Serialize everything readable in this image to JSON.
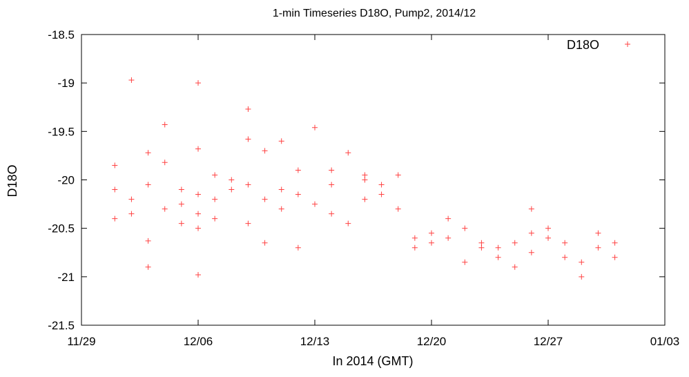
{
  "chart_data": {
    "type": "scatter",
    "title": "1-min Timeseries D18O, Pump2, 2014/12",
    "xlabel": "In 2014 (GMT)",
    "ylabel": "D18O",
    "xlim": [
      "2014-11-29",
      "2015-01-03"
    ],
    "ylim": [
      -21.5,
      -18.5
    ],
    "x_ticks": [
      "11/29",
      "12/06",
      "12/13",
      "12/20",
      "12/27",
      "01/03"
    ],
    "y_ticks": [
      "-18.5",
      "-19",
      "-19.5",
      "-20",
      "-20.5",
      "-21",
      "-21.5"
    ],
    "grid": false,
    "legend": "top-right",
    "series": [
      {
        "name": "D18O",
        "color": "#ff0000",
        "marker": "plus",
        "points": [
          [
            "2014-12-01",
            -20.1
          ],
          [
            "2014-12-01",
            -19.85
          ],
          [
            "2014-12-01",
            -20.4
          ],
          [
            "2014-12-02",
            -18.97
          ],
          [
            "2014-12-02",
            -20.2
          ],
          [
            "2014-12-02",
            -20.35
          ],
          [
            "2014-12-03",
            -19.72
          ],
          [
            "2014-12-03",
            -20.05
          ],
          [
            "2014-12-03",
            -20.9
          ],
          [
            "2014-12-03",
            -20.63
          ],
          [
            "2014-12-04",
            -19.43
          ],
          [
            "2014-12-04",
            -20.3
          ],
          [
            "2014-12-04",
            -19.82
          ],
          [
            "2014-12-05",
            -20.25
          ],
          [
            "2014-12-05",
            -20.45
          ],
          [
            "2014-12-05",
            -20.1
          ],
          [
            "2014-12-06",
            -19.0
          ],
          [
            "2014-12-06",
            -20.35
          ],
          [
            "2014-12-06",
            -20.5
          ],
          [
            "2014-12-06",
            -20.98
          ],
          [
            "2014-12-06",
            -19.68
          ],
          [
            "2014-12-06",
            -20.15
          ],
          [
            "2014-12-07",
            -20.2
          ],
          [
            "2014-12-07",
            -19.95
          ],
          [
            "2014-12-07",
            -20.4
          ],
          [
            "2014-12-08",
            -20.0
          ],
          [
            "2014-12-08",
            -20.1
          ],
          [
            "2014-12-09",
            -19.27
          ],
          [
            "2014-12-09",
            -20.45
          ],
          [
            "2014-12-09",
            -19.58
          ],
          [
            "2014-12-09",
            -20.05
          ],
          [
            "2014-12-10",
            -19.7
          ],
          [
            "2014-12-10",
            -20.65
          ],
          [
            "2014-12-10",
            -20.2
          ],
          [
            "2014-12-11",
            -19.6
          ],
          [
            "2014-12-11",
            -20.3
          ],
          [
            "2014-12-11",
            -20.1
          ],
          [
            "2014-12-12",
            -20.15
          ],
          [
            "2014-12-12",
            -20.7
          ],
          [
            "2014-12-12",
            -19.9
          ],
          [
            "2014-12-13",
            -19.46
          ],
          [
            "2014-12-13",
            -20.25
          ],
          [
            "2014-12-14",
            -19.9
          ],
          [
            "2014-12-14",
            -20.35
          ],
          [
            "2014-12-14",
            -20.05
          ],
          [
            "2014-12-15",
            -19.72
          ],
          [
            "2014-12-15",
            -20.45
          ],
          [
            "2014-12-16",
            -20.0
          ],
          [
            "2014-12-16",
            -20.2
          ],
          [
            "2014-12-16",
            -19.95
          ],
          [
            "2014-12-17",
            -20.05
          ],
          [
            "2014-12-17",
            -20.15
          ],
          [
            "2014-12-18",
            -19.95
          ],
          [
            "2014-12-18",
            -20.3
          ],
          [
            "2014-12-19",
            -20.6
          ],
          [
            "2014-12-19",
            -20.7
          ],
          [
            "2014-12-20",
            -20.55
          ],
          [
            "2014-12-20",
            -20.65
          ],
          [
            "2014-12-21",
            -20.4
          ],
          [
            "2014-12-21",
            -20.6
          ],
          [
            "2014-12-22",
            -20.5
          ],
          [
            "2014-12-22",
            -20.85
          ],
          [
            "2014-12-23",
            -20.65
          ],
          [
            "2014-12-23",
            -20.7
          ],
          [
            "2014-12-24",
            -20.7
          ],
          [
            "2014-12-24",
            -20.8
          ],
          [
            "2014-12-25",
            -20.65
          ],
          [
            "2014-12-25",
            -20.9
          ],
          [
            "2014-12-26",
            -20.55
          ],
          [
            "2014-12-26",
            -20.3
          ],
          [
            "2014-12-26",
            -20.75
          ],
          [
            "2014-12-27",
            -20.5
          ],
          [
            "2014-12-27",
            -20.6
          ],
          [
            "2014-12-28",
            -20.65
          ],
          [
            "2014-12-28",
            -20.8
          ],
          [
            "2014-12-29",
            -20.85
          ],
          [
            "2014-12-29",
            -21.0
          ],
          [
            "2014-12-30",
            -20.7
          ],
          [
            "2014-12-30",
            -20.55
          ],
          [
            "2014-12-31",
            -20.65
          ],
          [
            "2014-12-31",
            -20.8
          ]
        ]
      }
    ]
  }
}
